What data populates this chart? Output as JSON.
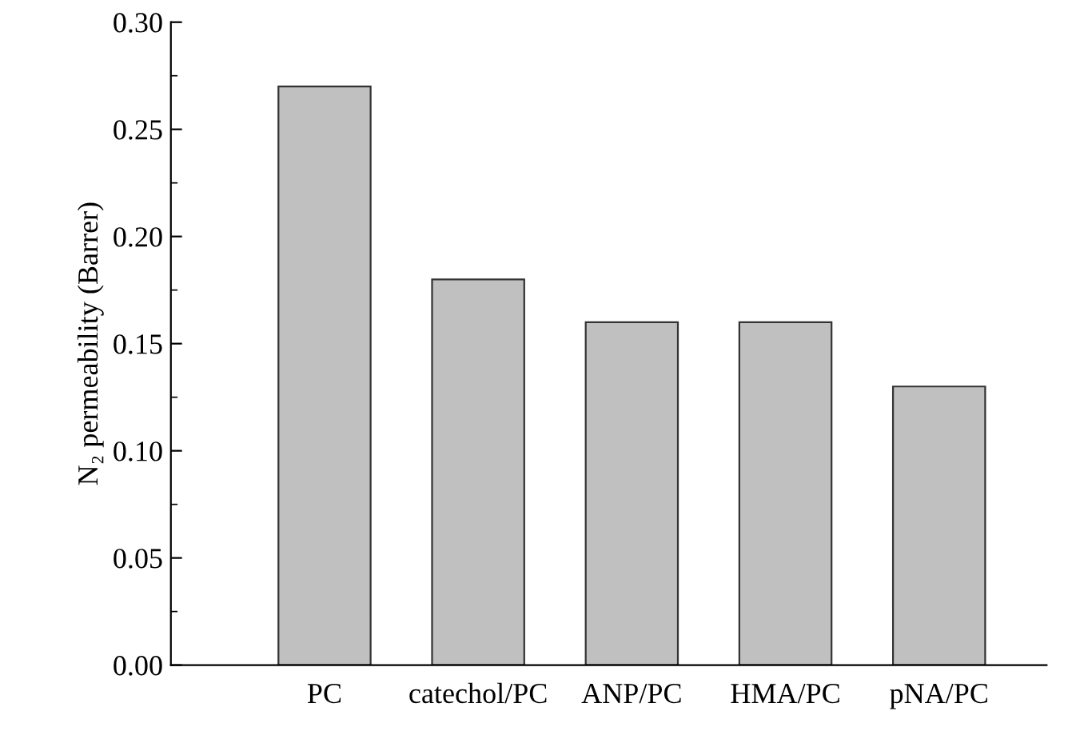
{
  "chart_data": {
    "type": "bar",
    "ylabel": "N₂ permeability (Barrer)",
    "categories": [
      "PC",
      "catechol/PC",
      "ANP/PC",
      "HMA/PC",
      "pNA/PC"
    ],
    "values": [
      0.27,
      0.18,
      0.16,
      0.16,
      0.13
    ],
    "color": "#c0c0c0",
    "ylim": [
      0,
      0.3
    ],
    "yticks": [
      {
        "value": 0,
        "label": "0.00"
      },
      {
        "value": 0.05,
        "label": "0.05"
      },
      {
        "value": 0.1,
        "label": "0.10"
      },
      {
        "value": 0.15,
        "label": "0.15"
      },
      {
        "value": 0.2,
        "label": "0.20"
      },
      {
        "value": 0.25,
        "label": "0.25"
      },
      {
        "value": 0.3,
        "label": "0.30"
      }
    ],
    "grid": false
  }
}
